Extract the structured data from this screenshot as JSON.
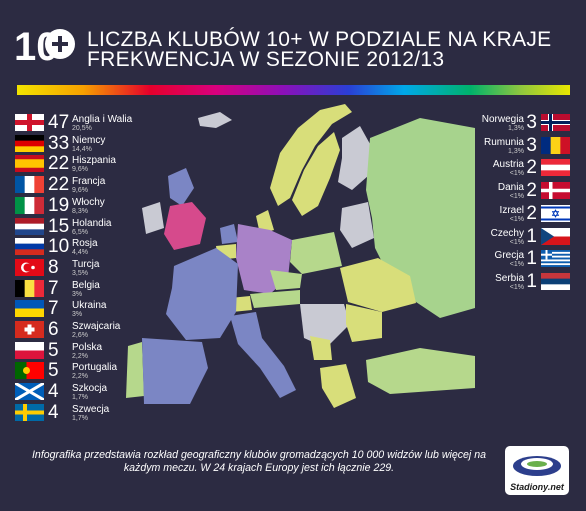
{
  "header": {
    "logo_text": "10+",
    "title_line1": "LICZBA KLUBÓW 10+ W PODZIALE NA KRAJE",
    "title_line2": "FREKWENCJA W SEZONIE 2012/13"
  },
  "left_list": [
    {
      "number": "47",
      "name": "Anglia i Walia",
      "percent": "20,5%"
    },
    {
      "number": "33",
      "name": "Niemcy",
      "percent": "14,4%"
    },
    {
      "number": "22",
      "name": "Hiszpania",
      "percent": "9,6%"
    },
    {
      "number": "22",
      "name": "Francja",
      "percent": "9,6%"
    },
    {
      "number": "19",
      "name": "Włochy",
      "percent": "8,3%"
    },
    {
      "number": "15",
      "name": "Holandia",
      "percent": "6,5%"
    },
    {
      "number": "10",
      "name": "Rosja",
      "percent": "4,4%"
    },
    {
      "number": "8",
      "name": "Turcja",
      "percent": "3,5%"
    },
    {
      "number": "7",
      "name": "Belgia",
      "percent": "3%"
    },
    {
      "number": "7",
      "name": "Ukraina",
      "percent": "3%"
    },
    {
      "number": "6",
      "name": "Szwajcaria",
      "percent": "2,6%"
    },
    {
      "number": "5",
      "name": "Polska",
      "percent": "2,2%"
    },
    {
      "number": "5",
      "name": "Portugalia",
      "percent": "2,2%"
    },
    {
      "number": "4",
      "name": "Szkocja",
      "percent": "1,7%"
    },
    {
      "number": "4",
      "name": "Szwecja",
      "percent": "1,7%"
    }
  ],
  "right_list": [
    {
      "number": "3",
      "name": "Norwegia",
      "percent": "1,3%"
    },
    {
      "number": "3",
      "name": "Rumunia",
      "percent": "1,3%"
    },
    {
      "number": "2",
      "name": "Austria",
      "percent": "<1%"
    },
    {
      "number": "2",
      "name": "Dania",
      "percent": "<1%"
    },
    {
      "number": "2",
      "name": "Izrael",
      "percent": "<1%"
    },
    {
      "number": "1",
      "name": "Czechy",
      "percent": "<1%"
    },
    {
      "number": "1",
      "name": "Grecja",
      "percent": "<1%"
    },
    {
      "number": "1",
      "name": "Serbia",
      "percent": "<1%"
    }
  ],
  "footer": {
    "text": "Infografika przedstawia rozkład geograficzny klubów gromadzących 10 000 widzów lub więcej na każdym meczu. W 24 krajach Europy jest ich łącznie 229.",
    "brand": "Stadiony.net"
  },
  "colors": {
    "background": "#2c2b42",
    "map_neutral": "#c9cad3",
    "england": "#d64a8c",
    "germany": "#a982c8",
    "spain_france_italy": "#7b86c4",
    "russia": "#a7d38d",
    "yellow_low": "#d8de7a"
  }
}
